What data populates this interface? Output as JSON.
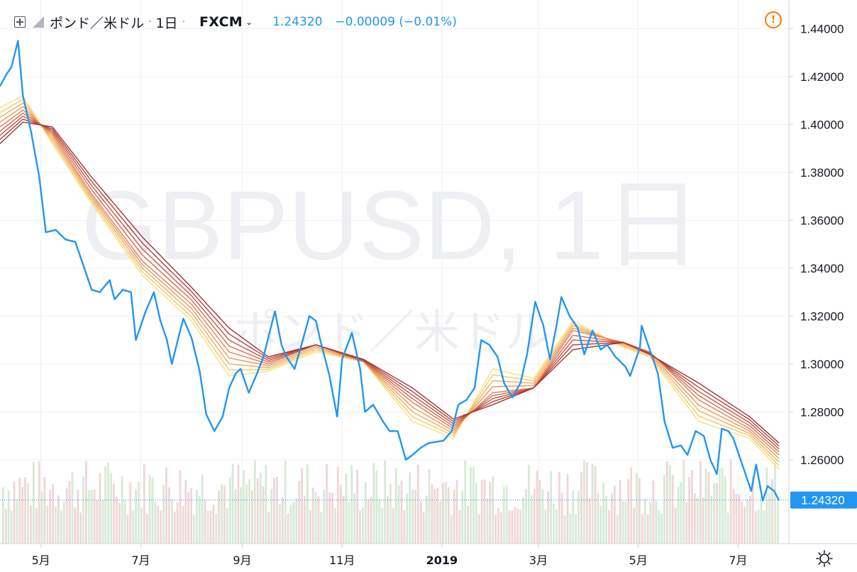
{
  "header": {
    "symbol": "ポンド／米ドル",
    "interval": "1日",
    "exchange": "FXCM",
    "last": "1.24320",
    "change": "−0.00009 (−0.01%)"
  },
  "watermark": {
    "line1": "GBPUSD, 1日",
    "line2": "ポンド／米ドル"
  },
  "price_badge": "1.24320",
  "colors": {
    "price_line": "#2196f3",
    "ribbon": [
      "#f6e27a",
      "#f4c86a",
      "#f0ae60",
      "#eb965a",
      "#e27f53",
      "#d6694c",
      "#c65444",
      "#b3423c",
      "#9e3532"
    ],
    "volume_up": "#d6ead5",
    "volume_down": "#f0d6d6",
    "grid": "#eef0f3",
    "badge": "#2196f3",
    "alert": "#f57c00"
  },
  "icons": [
    "plus-square-icon",
    "flag-icon",
    "chevron-down-icon",
    "alert-icon",
    "gear-icon"
  ],
  "chart_data": {
    "type": "line",
    "symbol": "GBPUSD",
    "y_ticks": [
      "1.44000",
      "1.42000",
      "1.40000",
      "1.38000",
      "1.36000",
      "1.34000",
      "1.32000",
      "1.30000",
      "1.28000",
      "1.26000",
      "1.24320"
    ],
    "ylim": [
      1.225,
      1.452
    ],
    "x_ticks": [
      "5月",
      "7月",
      "9月",
      "11月",
      "2019",
      "3月",
      "5月",
      "7月"
    ],
    "x_tick_dates": [
      "2018-05-01",
      "2018-07-01",
      "2018-09-01",
      "2018-11-01",
      "2019-01-01",
      "2019-03-01",
      "2019-05-01",
      "2019-07-01"
    ],
    "xlim": [
      "2018-04-06",
      "2019-08-01"
    ],
    "price_series": [
      [
        "2018-04-06",
        1.416
      ],
      [
        "2018-04-10",
        1.421
      ],
      [
        "2018-04-13",
        1.424
      ],
      [
        "2018-04-17",
        1.435
      ],
      [
        "2018-04-20",
        1.412
      ],
      [
        "2018-04-25",
        1.397
      ],
      [
        "2018-04-30",
        1.378
      ],
      [
        "2018-05-04",
        1.355
      ],
      [
        "2018-05-10",
        1.356
      ],
      [
        "2018-05-16",
        1.352
      ],
      [
        "2018-05-22",
        1.351
      ],
      [
        "2018-05-28",
        1.339
      ],
      [
        "2018-06-01",
        1.331
      ],
      [
        "2018-06-06",
        1.33
      ],
      [
        "2018-06-12",
        1.335
      ],
      [
        "2018-06-15",
        1.327
      ],
      [
        "2018-06-20",
        1.331
      ],
      [
        "2018-06-25",
        1.33
      ],
      [
        "2018-06-28",
        1.31
      ],
      [
        "2018-07-04",
        1.322
      ],
      [
        "2018-07-09",
        1.33
      ],
      [
        "2018-07-13",
        1.318
      ],
      [
        "2018-07-17",
        1.31
      ],
      [
        "2018-07-20",
        1.3
      ],
      [
        "2018-07-24",
        1.311
      ],
      [
        "2018-07-27",
        1.319
      ],
      [
        "2018-08-01",
        1.311
      ],
      [
        "2018-08-06",
        1.297
      ],
      [
        "2018-08-10",
        1.279
      ],
      [
        "2018-08-15",
        1.272
      ],
      [
        "2018-08-20",
        1.278
      ],
      [
        "2018-08-24",
        1.29
      ],
      [
        "2018-08-28",
        1.296
      ],
      [
        "2018-08-31",
        1.298
      ],
      [
        "2018-09-05",
        1.288
      ],
      [
        "2018-09-10",
        1.296
      ],
      [
        "2018-09-14",
        1.303
      ],
      [
        "2018-09-18",
        1.314
      ],
      [
        "2018-09-21",
        1.322
      ],
      [
        "2018-09-25",
        1.308
      ],
      [
        "2018-09-28",
        1.303
      ],
      [
        "2018-10-03",
        1.298
      ],
      [
        "2018-10-08",
        1.31
      ],
      [
        "2018-10-12",
        1.32
      ],
      [
        "2018-10-16",
        1.318
      ],
      [
        "2018-10-19",
        1.309
      ],
      [
        "2018-10-24",
        1.296
      ],
      [
        "2018-10-29",
        1.278
      ],
      [
        "2018-11-01",
        1.302
      ],
      [
        "2018-11-07",
        1.313
      ],
      [
        "2018-11-12",
        1.298
      ],
      [
        "2018-11-15",
        1.28
      ],
      [
        "2018-11-20",
        1.283
      ],
      [
        "2018-11-26",
        1.276
      ],
      [
        "2018-11-30",
        1.272
      ],
      [
        "2018-12-05",
        1.272
      ],
      [
        "2018-12-10",
        1.26
      ],
      [
        "2018-12-14",
        1.262
      ],
      [
        "2018-12-19",
        1.265
      ],
      [
        "2018-12-24",
        1.267
      ],
      [
        "2019-01-02",
        1.268
      ],
      [
        "2019-01-07",
        1.272
      ],
      [
        "2019-01-11",
        1.283
      ],
      [
        "2019-01-16",
        1.285
      ],
      [
        "2019-01-21",
        1.29
      ],
      [
        "2019-01-25",
        1.31
      ],
      [
        "2019-01-30",
        1.308
      ],
      [
        "2019-02-04",
        1.303
      ],
      [
        "2019-02-08",
        1.292
      ],
      [
        "2019-02-13",
        1.286
      ],
      [
        "2019-02-18",
        1.292
      ],
      [
        "2019-02-22",
        1.304
      ],
      [
        "2019-02-27",
        1.326
      ],
      [
        "2019-03-04",
        1.316
      ],
      [
        "2019-03-08",
        1.302
      ],
      [
        "2019-03-12",
        1.316
      ],
      [
        "2019-03-15",
        1.328
      ],
      [
        "2019-03-20",
        1.32
      ],
      [
        "2019-03-25",
        1.315
      ],
      [
        "2019-03-29",
        1.304
      ],
      [
        "2019-04-03",
        1.314
      ],
      [
        "2019-04-08",
        1.306
      ],
      [
        "2019-04-12",
        1.308
      ],
      [
        "2019-04-17",
        1.303
      ],
      [
        "2019-04-23",
        1.299
      ],
      [
        "2019-04-26",
        1.295
      ],
      [
        "2019-05-02",
        1.307
      ],
      [
        "2019-05-03",
        1.316
      ],
      [
        "2019-05-08",
        1.306
      ],
      [
        "2019-05-13",
        1.296
      ],
      [
        "2019-05-17",
        1.276
      ],
      [
        "2019-05-22",
        1.265
      ],
      [
        "2019-05-27",
        1.266
      ],
      [
        "2019-05-31",
        1.262
      ],
      [
        "2019-06-05",
        1.272
      ],
      [
        "2019-06-10",
        1.27
      ],
      [
        "2019-06-14",
        1.26
      ],
      [
        "2019-06-18",
        1.254
      ],
      [
        "2019-06-21",
        1.273
      ],
      [
        "2019-06-25",
        1.272
      ],
      [
        "2019-06-28",
        1.269
      ],
      [
        "2019-07-03",
        1.259
      ],
      [
        "2019-07-09",
        1.247
      ],
      [
        "2019-07-12",
        1.258
      ],
      [
        "2019-07-16",
        1.243
      ],
      [
        "2019-07-19",
        1.249
      ],
      [
        "2019-07-23",
        1.247
      ],
      [
        "2019-07-26",
        1.243
      ]
    ],
    "ribbon_bands": [
      [
        [
          "2018-04-06",
          1.407
        ],
        [
          "2018-04-20",
          1.412
        ],
        [
          "2018-05-08",
          1.392
        ],
        [
          "2018-06-01",
          1.367
        ],
        [
          "2018-07-02",
          1.337
        ],
        [
          "2018-08-01",
          1.318
        ],
        [
          "2018-08-24",
          1.295
        ],
        [
          "2018-09-17",
          1.297
        ],
        [
          "2018-10-16",
          1.305
        ],
        [
          "2018-11-14",
          1.301
        ],
        [
          "2018-12-14",
          1.276
        ],
        [
          "2019-01-08",
          1.269
        ],
        [
          "2019-02-01",
          1.298
        ],
        [
          "2019-02-26",
          1.294
        ],
        [
          "2019-03-22",
          1.318
        ],
        [
          "2019-04-22",
          1.307
        ],
        [
          "2019-05-08",
          1.303
        ],
        [
          "2019-06-07",
          1.276
        ],
        [
          "2019-07-08",
          1.269
        ],
        [
          "2019-07-26",
          1.256
        ]
      ],
      [
        [
          "2018-04-06",
          1.399
        ],
        [
          "2018-04-20",
          1.406
        ],
        [
          "2018-05-08",
          1.396
        ],
        [
          "2018-06-01",
          1.371
        ],
        [
          "2018-07-02",
          1.343
        ],
        [
          "2018-08-01",
          1.325
        ],
        [
          "2018-08-24",
          1.305
        ],
        [
          "2018-09-17",
          1.3
        ],
        [
          "2018-10-16",
          1.308
        ],
        [
          "2018-11-14",
          1.301
        ],
        [
          "2018-12-14",
          1.284
        ],
        [
          "2019-01-08",
          1.273
        ],
        [
          "2019-02-01",
          1.288
        ],
        [
          "2019-02-26",
          1.29
        ],
        [
          "2019-03-22",
          1.314
        ],
        [
          "2019-04-22",
          1.309
        ],
        [
          "2019-05-08",
          1.305
        ],
        [
          "2019-06-07",
          1.285
        ],
        [
          "2019-07-08",
          1.273
        ],
        [
          "2019-07-26",
          1.262
        ]
      ],
      [
        [
          "2018-04-06",
          1.392
        ],
        [
          "2018-04-20",
          1.401
        ],
        [
          "2018-05-08",
          1.399
        ],
        [
          "2018-06-01",
          1.378
        ],
        [
          "2018-07-02",
          1.353
        ],
        [
          "2018-08-01",
          1.332
        ],
        [
          "2018-08-24",
          1.315
        ],
        [
          "2018-09-17",
          1.303
        ],
        [
          "2018-10-16",
          1.308
        ],
        [
          "2018-11-14",
          1.302
        ],
        [
          "2018-12-14",
          1.29
        ],
        [
          "2019-01-08",
          1.277
        ],
        [
          "2019-02-01",
          1.283
        ],
        [
          "2019-02-26",
          1.29
        ],
        [
          "2019-03-22",
          1.306
        ],
        [
          "2019-04-22",
          1.309
        ],
        [
          "2019-05-08",
          1.304
        ],
        [
          "2019-06-07",
          1.292
        ],
        [
          "2019-07-08",
          1.278
        ],
        [
          "2019-07-26",
          1.267
        ]
      ]
    ],
    "volume_bars": "approx. 280 daily volume bars, alternating light green/light red",
    "watermark": "GBPUSD, 1日"
  }
}
